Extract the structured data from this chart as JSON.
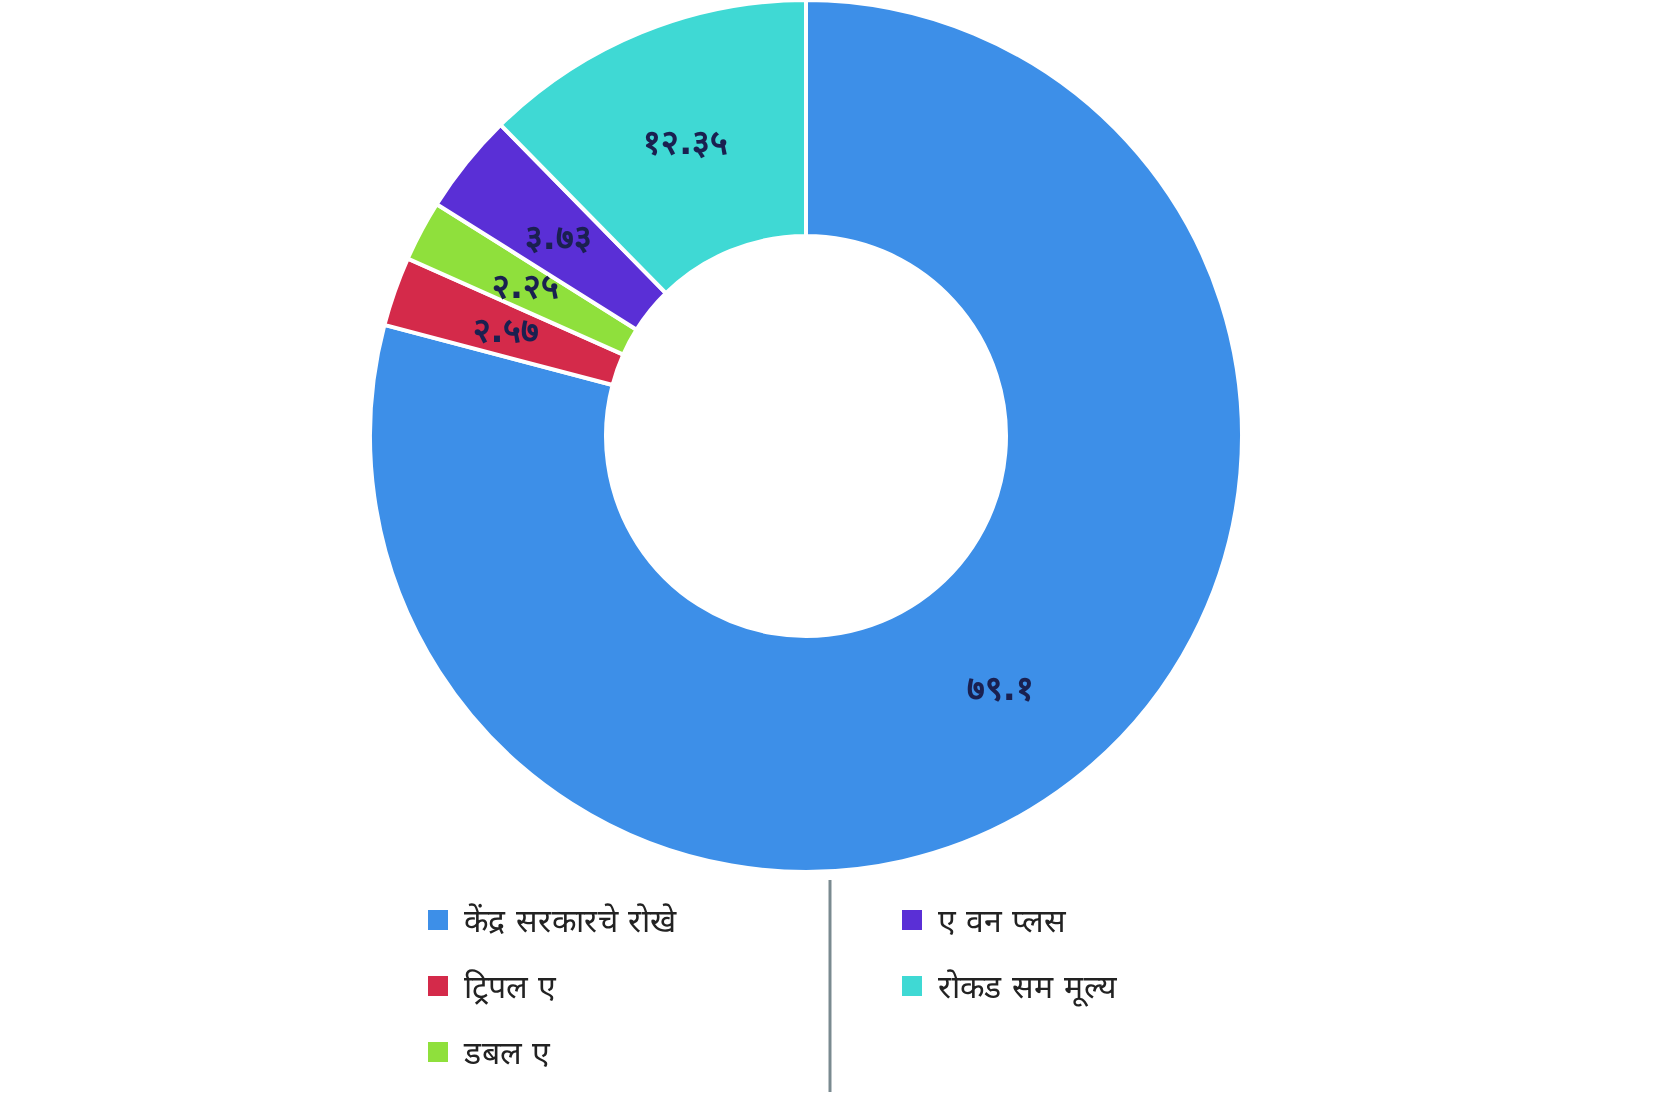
{
  "chart_data": {
    "type": "donut",
    "categories": [
      "केंद्र सरकारचे रोखे",
      "ट्रिपल ए",
      "डबल ए",
      "ए वन प्लस",
      "रोकड सम मूल्य"
    ],
    "values": [
      79.1,
      2.57,
      2.25,
      3.73,
      12.35
    ],
    "value_labels": [
      "७९.१",
      "२.५७",
      "२.२५",
      "३.७३",
      "१२.३५"
    ],
    "colors": [
      "#3d8fe8",
      "#d42a4a",
      "#8fe03c",
      "#5a2fd6",
      "#3fd9d4"
    ],
    "legend": "bottom"
  }
}
